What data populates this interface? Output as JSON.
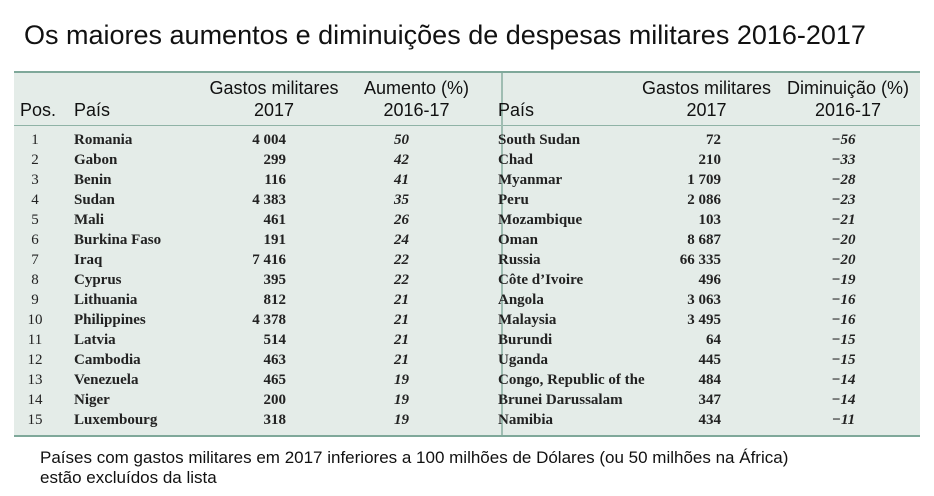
{
  "title": "Os maiores aumentos e diminuições de despesas militares 2016-2017",
  "chart_data": {
    "type": "table",
    "title": "Os maiores aumentos e diminuições de despesas militares 2016-2017",
    "left_table": {
      "headers": {
        "pos": "Pos.",
        "country": "País",
        "spending_l1": "Gastos militares",
        "spending_l2": "2017",
        "change_l1": "Aumento (%)",
        "change_l2": "2016-17"
      },
      "rows": [
        {
          "pos": "1",
          "country": "Romania",
          "spending": "4 004",
          "change": "50"
        },
        {
          "pos": "2",
          "country": "Gabon",
          "spending": "299",
          "change": "42"
        },
        {
          "pos": "3",
          "country": "Benin",
          "spending": "116",
          "change": "41"
        },
        {
          "pos": "4",
          "country": "Sudan",
          "spending": "4 383",
          "change": "35"
        },
        {
          "pos": "5",
          "country": "Mali",
          "spending": "461",
          "change": "26"
        },
        {
          "pos": "6",
          "country": "Burkina Faso",
          "spending": "191",
          "change": "24"
        },
        {
          "pos": "7",
          "country": "Iraq",
          "spending": "7 416",
          "change": "22"
        },
        {
          "pos": "8",
          "country": "Cyprus",
          "spending": "395",
          "change": "22"
        },
        {
          "pos": "9",
          "country": "Lithuania",
          "spending": "812",
          "change": "21"
        },
        {
          "pos": "10",
          "country": "Philippines",
          "spending": "4 378",
          "change": "21"
        },
        {
          "pos": "11",
          "country": "Latvia",
          "spending": "514",
          "change": "21"
        },
        {
          "pos": "12",
          "country": "Cambodia",
          "spending": "463",
          "change": "21"
        },
        {
          "pos": "13",
          "country": "Venezuela",
          "spending": "465",
          "change": "19"
        },
        {
          "pos": "14",
          "country": "Niger",
          "spending": "200",
          "change": "19"
        },
        {
          "pos": "15",
          "country": "Luxembourg",
          "spending": "318",
          "change": "19"
        }
      ]
    },
    "right_table": {
      "headers": {
        "country": "País",
        "spending_l1": "Gastos militares",
        "spending_l2": "2017",
        "change_l1": "Diminuição (%)",
        "change_l2": "2016-17"
      },
      "rows": [
        {
          "country": "South Sudan",
          "spending": "72",
          "change": "−56"
        },
        {
          "country": "Chad",
          "spending": "210",
          "change": "−33"
        },
        {
          "country": "Myanmar",
          "spending": "1 709",
          "change": "−28"
        },
        {
          "country": "Peru",
          "spending": "2 086",
          "change": "−23"
        },
        {
          "country": "Mozambique",
          "spending": "103",
          "change": "−21"
        },
        {
          "country": "Oman",
          "spending": "8 687",
          "change": "−20"
        },
        {
          "country": "Russia",
          "spending": "66 335",
          "change": "−20"
        },
        {
          "country": "Côte d’Ivoire",
          "spending": "496",
          "change": "−19"
        },
        {
          "country": "Angola",
          "spending": "3 063",
          "change": "−16"
        },
        {
          "country": "Malaysia",
          "spending": "3 495",
          "change": "−16"
        },
        {
          "country": "Burundi",
          "spending": "64",
          "change": "−15"
        },
        {
          "country": "Uganda",
          "spending": "445",
          "change": "−15"
        },
        {
          "country": "Congo, Republic of the",
          "spending": "484",
          "change": "−14"
        },
        {
          "country": "Brunei Darussalam",
          "spending": "347",
          "change": "−14"
        },
        {
          "country": "Namibia",
          "spending": "434",
          "change": "−11"
        }
      ]
    }
  },
  "footnote": {
    "line1": "Países com gastos militares em 2017 inferiores a 100 milhões de Dólares (ou 50 milhões na África)",
    "line2": "estão excluídos da lista"
  },
  "colors": {
    "panel_bg": "#e4ece8",
    "rule": "#7fa89a"
  }
}
